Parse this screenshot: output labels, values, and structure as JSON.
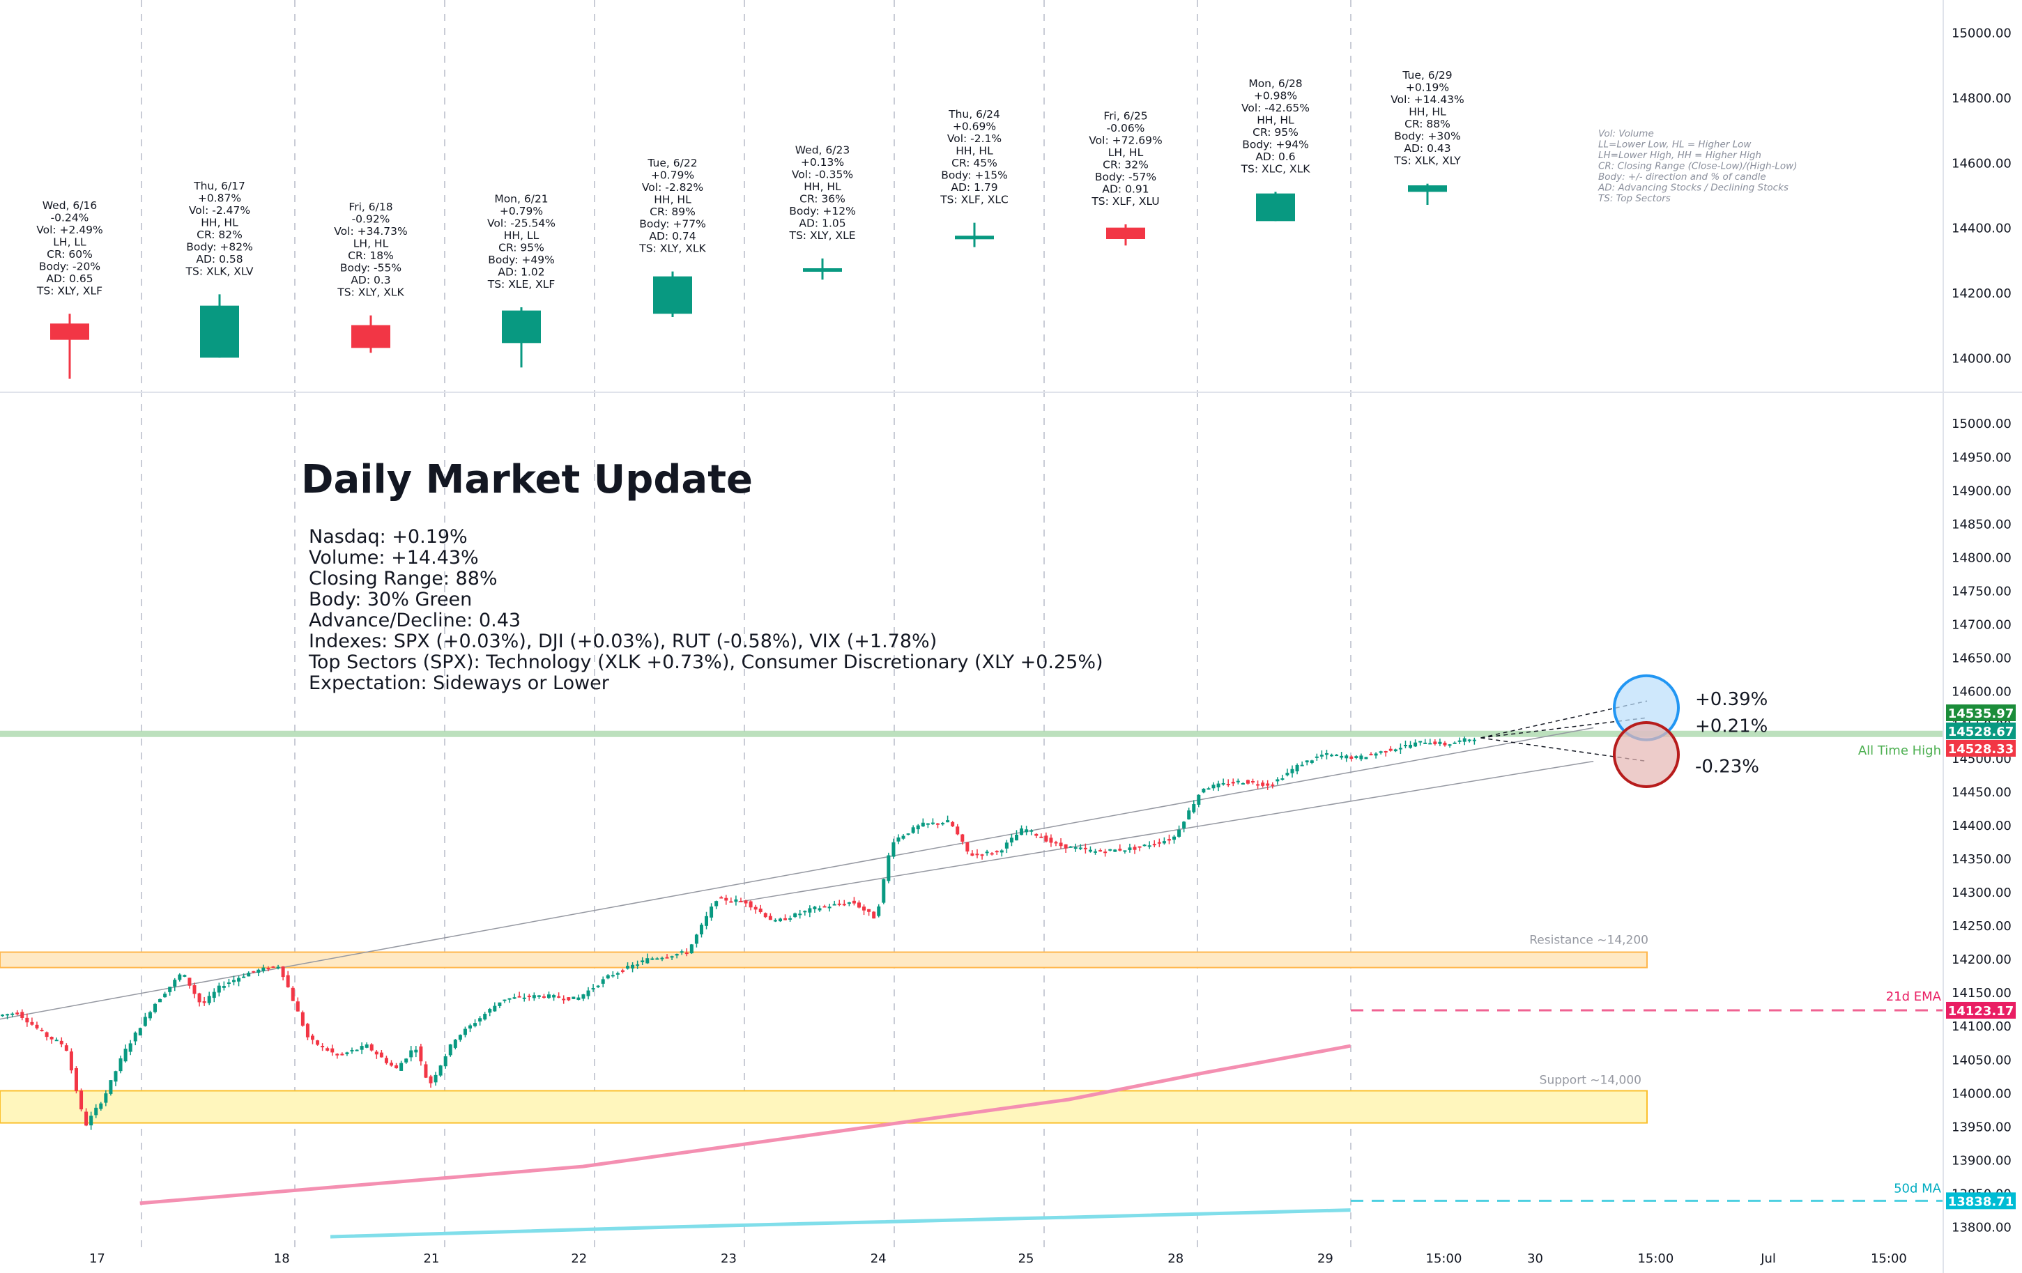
{
  "chart_data": [
    {
      "type": "candlestick",
      "panel": "daily",
      "ylim": [
        13900,
        15100
      ],
      "y_ticks": [
        "15000.00",
        "14800.00",
        "14600.00",
        "14400.00",
        "14200.00",
        "14000.00"
      ],
      "days": [
        {
          "open": 14105,
          "high": 14135,
          "low": 13935,
          "close": 14055,
          "lines": [
            "Wed, 6/16",
            "-0.24%",
            "Vol: +2.49%",
            "LH, LL",
            "CR: 60%",
            "Body: -20%",
            "AD: 0.65",
            "TS: XLY, XLF"
          ]
        },
        {
          "open": 14000,
          "high": 14195,
          "low": 14000,
          "close": 14160,
          "lines": [
            "Thu, 6/17",
            "+0.87%",
            "Vol: -2.47%",
            "HH, HL",
            "CR: 82%",
            "Body: +82%",
            "AD: 0.58",
            "TS: XLK, XLV"
          ]
        },
        {
          "open": 14100,
          "high": 14130,
          "low": 14015,
          "close": 14030,
          "lines": [
            "Fri, 6/18",
            "-0.92%",
            "Vol: +34.73%",
            "LH, HL",
            "CR: 18%",
            "Body: -55%",
            "AD: 0.3",
            "TS: XLY, XLK"
          ]
        },
        {
          "open": 14045,
          "high": 14155,
          "low": 13970,
          "close": 14145,
          "lines": [
            "Mon, 6/21",
            "+0.79%",
            "Vol: -25.54%",
            "HH, LL",
            "CR: 95%",
            "Body: +49%",
            "AD: 1.02",
            "TS: XLE, XLF"
          ]
        },
        {
          "open": 14135,
          "high": 14265,
          "low": 14125,
          "close": 14250,
          "lines": [
            "Tue, 6/22",
            "+0.79%",
            "Vol: -2.82%",
            "HH, HL",
            "CR: 89%",
            "Body: +77%",
            "AD: 0.74",
            "TS: XLY, XLK"
          ]
        },
        {
          "open": 14265,
          "high": 14305,
          "low": 14240,
          "close": 14275,
          "lines": [
            "Wed, 6/23",
            "+0.13%",
            "Vol: -0.35%",
            "HH, HL",
            "CR: 36%",
            "Body: +12%",
            "AD: 1.05",
            "TS: XLY, XLE"
          ]
        },
        {
          "open": 14365,
          "high": 14415,
          "low": 14340,
          "close": 14375,
          "lines": [
            "Thu, 6/24",
            "+0.69%",
            "Vol: -2.1%",
            "HH, HL",
            "CR: 45%",
            "Body: +15%",
            "AD: 1.79",
            "TS: XLF, XLC"
          ]
        },
        {
          "open": 14400,
          "high": 14410,
          "low": 14345,
          "close": 14365,
          "lines": [
            "Fri, 6/25",
            "-0.06%",
            "Vol: +72.69%",
            "LH, HL",
            "CR: 32%",
            "Body: -57%",
            "AD: 0.91",
            "TS: XLF, XLU"
          ]
        },
        {
          "open": 14420,
          "high": 14510,
          "low": 14420,
          "close": 14505,
          "lines": [
            "Mon, 6/28",
            "+0.98%",
            "Vol: -42.65%",
            "HH, HL",
            "CR: 95%",
            "Body: +94%",
            "AD: 0.6",
            "TS: XLC, XLK"
          ]
        },
        {
          "open": 14510,
          "high": 14535,
          "low": 14470,
          "close": 14530,
          "lines": [
            "Tue, 6/29",
            "+0.19%",
            "Vol: +14.43%",
            "HH, HL",
            "CR: 88%",
            "Body: +30%",
            "AD: 0.43",
            "TS: XLK, XLY"
          ]
        }
      ],
      "legend": [
        "Vol: Volume",
        "LL=Lower Low, HL = Higher Low",
        "LH=Lower High, HH = Higher High",
        "CR: Closing Range (Close-Low)/(High-Low)",
        "Body: +/- direction and % of candle",
        "AD: Advancing Stocks / Declining Stocks",
        "TS: Top Sectors"
      ]
    },
    {
      "type": "candlestick",
      "panel": "intraday",
      "ylim": [
        13785,
        15020
      ],
      "y_ticks": [
        "15000.00",
        "14950.00",
        "14900.00",
        "14850.00",
        "14800.00",
        "14750.00",
        "14700.00",
        "14650.00",
        "14600.00",
        "14550.00",
        "14500.00",
        "14450.00",
        "14400.00",
        "14350.00",
        "14300.00",
        "14250.00",
        "14200.00",
        "14150.00",
        "14100.00",
        "14050.00",
        "14000.00",
        "13950.00",
        "13900.00",
        "13850.00",
        "13800.00"
      ],
      "x_ticks": [
        {
          "pos": 0.05,
          "label": "17"
        },
        {
          "pos": 0.145,
          "label": "18"
        },
        {
          "pos": 0.222,
          "label": "21"
        },
        {
          "pos": 0.298,
          "label": "22"
        },
        {
          "pos": 0.375,
          "label": "23"
        },
        {
          "pos": 0.452,
          "label": "24"
        },
        {
          "pos": 0.528,
          "label": "25"
        },
        {
          "pos": 0.605,
          "label": "28"
        },
        {
          "pos": 0.682,
          "label": "29"
        },
        {
          "pos": 0.743,
          "label": "15:00"
        },
        {
          "pos": 0.79,
          "label": "30"
        },
        {
          "pos": 0.852,
          "label": "15:00"
        },
        {
          "pos": 0.91,
          "label": "Jul"
        },
        {
          "pos": 0.972,
          "label": "15:00"
        }
      ],
      "price_path": [
        {
          "t": 0.0,
          "p": 14115
        },
        {
          "t": 0.01,
          "p": 14120
        },
        {
          "t": 0.025,
          "p": 14085
        },
        {
          "t": 0.035,
          "p": 14070
        },
        {
          "t": 0.045,
          "p": 13950
        },
        {
          "t": 0.055,
          "p": 13995
        },
        {
          "t": 0.065,
          "p": 14060
        },
        {
          "t": 0.08,
          "p": 14130
        },
        {
          "t": 0.095,
          "p": 14180
        },
        {
          "t": 0.105,
          "p": 14130
        },
        {
          "t": 0.115,
          "p": 14160
        },
        {
          "t": 0.13,
          "p": 14180
        },
        {
          "t": 0.145,
          "p": 14190
        },
        {
          "t": 0.16,
          "p": 14080
        },
        {
          "t": 0.175,
          "p": 14055
        },
        {
          "t": 0.19,
          "p": 14070
        },
        {
          "t": 0.205,
          "p": 14035
        },
        {
          "t": 0.215,
          "p": 14070
        },
        {
          "t": 0.222,
          "p": 14010
        },
        {
          "t": 0.235,
          "p": 14080
        },
        {
          "t": 0.26,
          "p": 14140
        },
        {
          "t": 0.28,
          "p": 14145
        },
        {
          "t": 0.298,
          "p": 14140
        },
        {
          "t": 0.315,
          "p": 14175
        },
        {
          "t": 0.335,
          "p": 14200
        },
        {
          "t": 0.355,
          "p": 14210
        },
        {
          "t": 0.37,
          "p": 14290
        },
        {
          "t": 0.385,
          "p": 14285
        },
        {
          "t": 0.4,
          "p": 14255
        },
        {
          "t": 0.42,
          "p": 14275
        },
        {
          "t": 0.44,
          "p": 14285
        },
        {
          "t": 0.452,
          "p": 14260
        },
        {
          "t": 0.46,
          "p": 14375
        },
        {
          "t": 0.475,
          "p": 14400
        },
        {
          "t": 0.49,
          "p": 14405
        },
        {
          "t": 0.5,
          "p": 14355
        },
        {
          "t": 0.515,
          "p": 14360
        },
        {
          "t": 0.528,
          "p": 14395
        },
        {
          "t": 0.545,
          "p": 14370
        },
        {
          "t": 0.565,
          "p": 14360
        },
        {
          "t": 0.585,
          "p": 14365
        },
        {
          "t": 0.605,
          "p": 14380
        },
        {
          "t": 0.62,
          "p": 14455
        },
        {
          "t": 0.64,
          "p": 14465
        },
        {
          "t": 0.655,
          "p": 14460
        },
        {
          "t": 0.67,
          "p": 14490
        },
        {
          "t": 0.682,
          "p": 14505
        },
        {
          "t": 0.7,
          "p": 14500
        },
        {
          "t": 0.72,
          "p": 14515
        },
        {
          "t": 0.735,
          "p": 14525
        },
        {
          "t": 0.745,
          "p": 14520
        },
        {
          "t": 0.76,
          "p": 14530
        }
      ],
      "annotations": {
        "title": "Daily Market Update",
        "lines": [
          "Nasdaq: +0.19%",
          "Volume: +14.43%",
          "Closing Range: 88%",
          "Body: 30% Green",
          "Advance/Decline: 0.43",
          "Indexes: SPX (+0.03%), DJI (+0.03%), RUT (-0.58%), VIX (+1.78%)",
          "Top Sectors (SPX): Technology (XLK +0.73%), Consumer Discretionary (XLY +0.25%)",
          "Expectation: Sideways or Lower"
        ],
        "targets": [
          "+0.39%",
          "+0.21%",
          "-0.23%"
        ]
      },
      "levels": [
        {
          "name": "All Time High",
          "value": 14535.97,
          "color": "#4caf50"
        },
        {
          "name": "Resistance ~14,200",
          "low": 14187,
          "high": 14210,
          "color": "#ffb74d"
        },
        {
          "name": "Support ~14,000",
          "low": 13955,
          "high": 14003,
          "color": "#ffeb3b"
        },
        {
          "name": "21d EMA",
          "value": 14123.17,
          "color": "#e91e63"
        },
        {
          "name": "50d MA",
          "value": 13838.71,
          "color": "#00bcd4"
        }
      ],
      "price_labels": [
        {
          "value": "14535.97",
          "color": "#1b8d3a"
        },
        {
          "value": "14528.67",
          "color": "#089981"
        },
        {
          "value": "14528.33",
          "color": "#f23645"
        },
        {
          "value": "14123.17",
          "color": "#e91e63"
        },
        {
          "value": "13838.71",
          "color": "#00bcd4"
        }
      ]
    }
  ]
}
